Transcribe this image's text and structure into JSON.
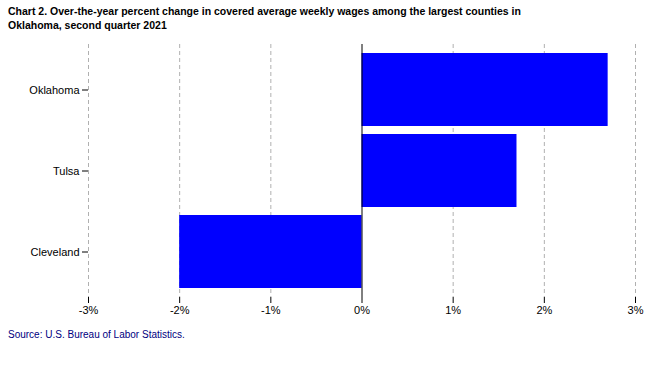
{
  "chart_data": {
    "type": "bar",
    "orientation": "horizontal",
    "title": "Chart 2. Over-the-year percent change in covered average weekly wages among the largest counties in",
    "subtitle": "Oklahoma, second quarter 2021",
    "source": "Source:  U.S. Bureau of Labor Statistics.",
    "categories": [
      "Cleveland",
      "Tulsa",
      "Oklahoma"
    ],
    "values": [
      -2.0,
      1.7,
      2.7
    ],
    "color": "#0000FF",
    "xlim": [
      -3,
      3
    ],
    "xticks": [
      {
        "value": -3,
        "label": "-3%"
      },
      {
        "value": -2,
        "label": "-2%"
      },
      {
        "value": -1,
        "label": "-1%"
      },
      {
        "value": 0,
        "label": "0%"
      },
      {
        "value": 1,
        "label": "1%"
      },
      {
        "value": 2,
        "label": "2%"
      },
      {
        "value": 3,
        "label": "3%"
      }
    ],
    "grid": true
  }
}
